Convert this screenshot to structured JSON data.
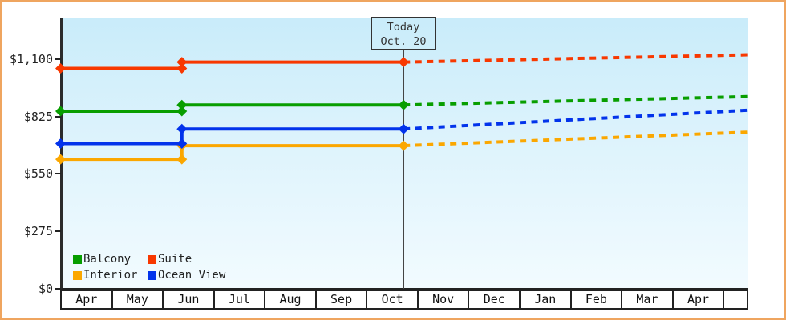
{
  "page": {
    "frame_border_color": "#efa55f",
    "axis_color": "#2b2b2b",
    "text_color": "#222222",
    "plot_background_top": "#c9ecfa",
    "plot_background_bottom": "#f2fbff"
  },
  "chart_data": {
    "type": "line",
    "title": "",
    "description": "Cabin price history (solid) and forecast (dotted) by cabin type",
    "grid": "off",
    "legend_position": "bottom-left-inside",
    "today_marker": {
      "label_line1": "Today",
      "label_line2": "Oct. 20",
      "x_months": 6.73
    },
    "x_axis": {
      "unit": "month",
      "categories": [
        "Apr",
        "May",
        "Jun",
        "Jul",
        "Aug",
        "Sep",
        "Oct",
        "Nov",
        "Dec",
        "Jan",
        "Feb",
        "Mar",
        "Apr",
        ""
      ]
    },
    "y_axis": {
      "range": [
        0,
        1300
      ],
      "ticks": [
        {
          "label": "$0",
          "value": 0
        },
        {
          "label": "$275",
          "value": 275
        },
        {
          "label": "$550",
          "value": 550
        },
        {
          "label": "$825",
          "value": 825
        },
        {
          "label": "$1,100",
          "value": 1100
        }
      ]
    },
    "series": [
      {
        "name": "Interior",
        "color": "#fba700",
        "history": [
          {
            "x": 0,
            "price": 620
          },
          {
            "x": 2.38,
            "price": 620
          },
          {
            "x": 2.38,
            "price": 685
          },
          {
            "x": 6.73,
            "price": 685
          }
        ],
        "forecast": [
          {
            "x": 6.73,
            "price": 685
          },
          {
            "x": 13.49,
            "price": 750
          }
        ]
      },
      {
        "name": "Ocean View",
        "color": "#0233eb",
        "history": [
          {
            "x": 0,
            "price": 695
          },
          {
            "x": 2.38,
            "price": 695
          },
          {
            "x": 2.38,
            "price": 765
          },
          {
            "x": 6.73,
            "price": 765
          }
        ],
        "forecast": [
          {
            "x": 6.73,
            "price": 765
          },
          {
            "x": 13.49,
            "price": 855
          }
        ]
      },
      {
        "name": "Balcony",
        "color": "#089e00",
        "history": [
          {
            "x": 0,
            "price": 850
          },
          {
            "x": 2.38,
            "price": 850
          },
          {
            "x": 2.38,
            "price": 880
          },
          {
            "x": 6.73,
            "price": 880
          }
        ],
        "forecast": [
          {
            "x": 6.73,
            "price": 880
          },
          {
            "x": 13.49,
            "price": 920
          }
        ]
      },
      {
        "name": "Suite",
        "color": "#f83800",
        "history": [
          {
            "x": 0,
            "price": 1055
          },
          {
            "x": 2.38,
            "price": 1055
          },
          {
            "x": 2.38,
            "price": 1085
          },
          {
            "x": 6.73,
            "price": 1085
          }
        ],
        "forecast": [
          {
            "x": 6.73,
            "price": 1085
          },
          {
            "x": 13.49,
            "price": 1120
          }
        ]
      }
    ],
    "legend_order": [
      {
        "series_index": 2
      },
      {
        "series_index": 3
      },
      {
        "series_index": 0
      },
      {
        "series_index": 1
      }
    ]
  }
}
